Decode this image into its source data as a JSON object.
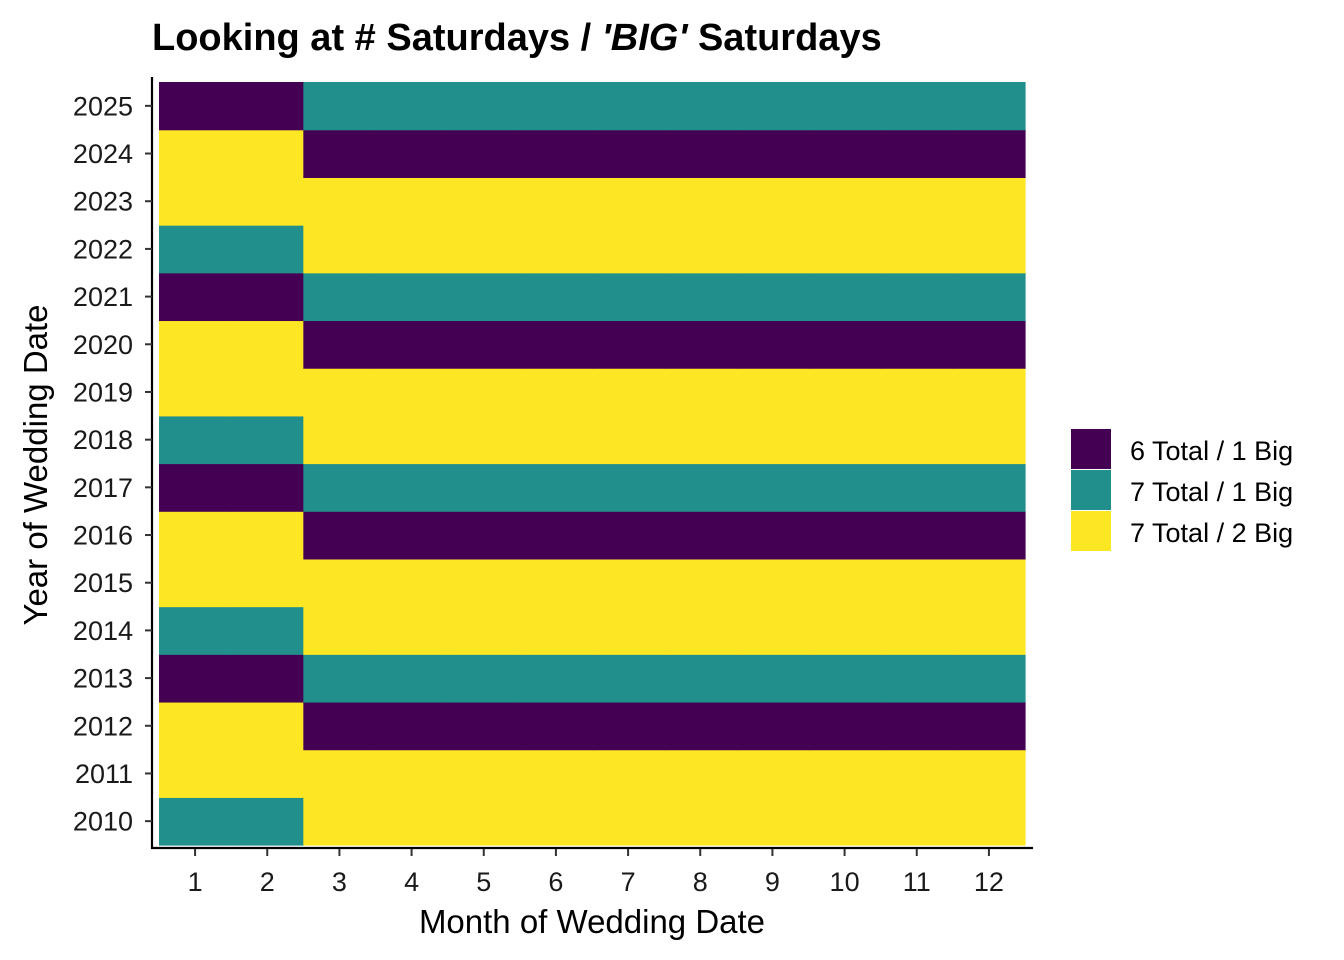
{
  "chart_data": {
    "type": "heatmap",
    "title": {
      "prefix": "Looking at # Saturdays / ",
      "emphasis": "'BIG'",
      "suffix": " Saturdays"
    },
    "xlabel": "Month of Wedding Date",
    "ylabel": "Year of Wedding Date",
    "x_categories": [
      "1",
      "2",
      "3",
      "4",
      "5",
      "6",
      "7",
      "8",
      "9",
      "10",
      "11",
      "12"
    ],
    "y_categories": [
      "2010",
      "2011",
      "2012",
      "2013",
      "2014",
      "2015",
      "2016",
      "2017",
      "2018",
      "2019",
      "2020",
      "2021",
      "2022",
      "2023",
      "2024",
      "2025"
    ],
    "legend": {
      "position": "right",
      "entries": [
        {
          "key": "6_1",
          "label": "6 Total / 1 Big",
          "color": "#440154"
        },
        {
          "key": "7_1",
          "label": "7 Total / 1 Big",
          "color": "#21908C"
        },
        {
          "key": "7_2",
          "label": "7 Total / 2 Big",
          "color": "#FDE725"
        }
      ]
    },
    "rows": [
      {
        "year": "2010",
        "values": [
          "7_1",
          "7_1",
          "7_2",
          "7_2",
          "7_2",
          "7_2",
          "7_2",
          "7_2",
          "7_2",
          "7_2",
          "7_2",
          "7_2"
        ]
      },
      {
        "year": "2011",
        "values": [
          "7_2",
          "7_2",
          "7_2",
          "7_2",
          "7_2",
          "7_2",
          "7_2",
          "7_2",
          "7_2",
          "7_2",
          "7_2",
          "7_2"
        ]
      },
      {
        "year": "2012",
        "values": [
          "7_2",
          "7_2",
          "6_1",
          "6_1",
          "6_1",
          "6_1",
          "6_1",
          "6_1",
          "6_1",
          "6_1",
          "6_1",
          "6_1"
        ]
      },
      {
        "year": "2013",
        "values": [
          "6_1",
          "6_1",
          "7_1",
          "7_1",
          "7_1",
          "7_1",
          "7_1",
          "7_1",
          "7_1",
          "7_1",
          "7_1",
          "7_1"
        ]
      },
      {
        "year": "2014",
        "values": [
          "7_1",
          "7_1",
          "7_2",
          "7_2",
          "7_2",
          "7_2",
          "7_2",
          "7_2",
          "7_2",
          "7_2",
          "7_2",
          "7_2"
        ]
      },
      {
        "year": "2015",
        "values": [
          "7_2",
          "7_2",
          "7_2",
          "7_2",
          "7_2",
          "7_2",
          "7_2",
          "7_2",
          "7_2",
          "7_2",
          "7_2",
          "7_2"
        ]
      },
      {
        "year": "2016",
        "values": [
          "7_2",
          "7_2",
          "6_1",
          "6_1",
          "6_1",
          "6_1",
          "6_1",
          "6_1",
          "6_1",
          "6_1",
          "6_1",
          "6_1"
        ]
      },
      {
        "year": "2017",
        "values": [
          "6_1",
          "6_1",
          "7_1",
          "7_1",
          "7_1",
          "7_1",
          "7_1",
          "7_1",
          "7_1",
          "7_1",
          "7_1",
          "7_1"
        ]
      },
      {
        "year": "2018",
        "values": [
          "7_1",
          "7_1",
          "7_2",
          "7_2",
          "7_2",
          "7_2",
          "7_2",
          "7_2",
          "7_2",
          "7_2",
          "7_2",
          "7_2"
        ]
      },
      {
        "year": "2019",
        "values": [
          "7_2",
          "7_2",
          "7_2",
          "7_2",
          "7_2",
          "7_2",
          "7_2",
          "7_2",
          "7_2",
          "7_2",
          "7_2",
          "7_2"
        ]
      },
      {
        "year": "2020",
        "values": [
          "7_2",
          "7_2",
          "6_1",
          "6_1",
          "6_1",
          "6_1",
          "6_1",
          "6_1",
          "6_1",
          "6_1",
          "6_1",
          "6_1"
        ]
      },
      {
        "year": "2021",
        "values": [
          "6_1",
          "6_1",
          "7_1",
          "7_1",
          "7_1",
          "7_1",
          "7_1",
          "7_1",
          "7_1",
          "7_1",
          "7_1",
          "7_1"
        ]
      },
      {
        "year": "2022",
        "values": [
          "7_1",
          "7_1",
          "7_2",
          "7_2",
          "7_2",
          "7_2",
          "7_2",
          "7_2",
          "7_2",
          "7_2",
          "7_2",
          "7_2"
        ]
      },
      {
        "year": "2023",
        "values": [
          "7_2",
          "7_2",
          "7_2",
          "7_2",
          "7_2",
          "7_2",
          "7_2",
          "7_2",
          "7_2",
          "7_2",
          "7_2",
          "7_2"
        ]
      },
      {
        "year": "2024",
        "values": [
          "7_2",
          "7_2",
          "6_1",
          "6_1",
          "6_1",
          "6_1",
          "6_1",
          "6_1",
          "6_1",
          "6_1",
          "6_1",
          "6_1"
        ]
      },
      {
        "year": "2025",
        "values": [
          "6_1",
          "6_1",
          "7_1",
          "7_1",
          "7_1",
          "7_1",
          "7_1",
          "7_1",
          "7_1",
          "7_1",
          "7_1",
          "7_1"
        ]
      }
    ],
    "grid": false
  }
}
